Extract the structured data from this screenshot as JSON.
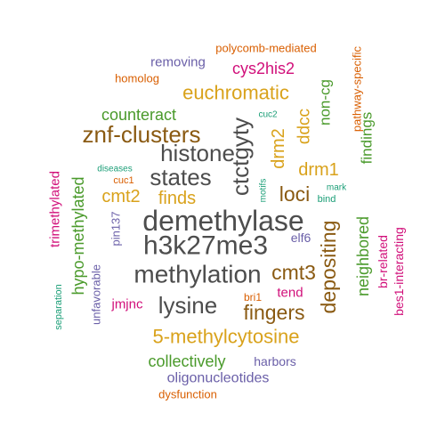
{
  "palette": {
    "gray": "#4d4d4d",
    "brown": "#8a5a12",
    "orange": "#d9a21b",
    "green": "#4a9a2b",
    "magenta": "#d10f7a",
    "teal": "#1b9e77",
    "purple": "#6a5fa8",
    "rust": "#d95f02"
  },
  "words": [
    {
      "text": "demethylase",
      "color": "gray"
    },
    {
      "text": "h3k27me3",
      "color": "gray"
    },
    {
      "text": "methylation",
      "color": "gray"
    },
    {
      "text": "histone",
      "color": "gray"
    },
    {
      "text": "states",
      "color": "gray"
    },
    {
      "text": "lysine",
      "color": "gray"
    },
    {
      "text": "ctctgyty",
      "color": "gray"
    },
    {
      "text": "znf-clusters",
      "color": "brown"
    },
    {
      "text": "depositing",
      "color": "brown"
    },
    {
      "text": "fingers",
      "color": "brown"
    },
    {
      "text": "cmt3",
      "color": "brown"
    },
    {
      "text": "loci",
      "color": "brown"
    },
    {
      "text": "euchromatic",
      "color": "orange"
    },
    {
      "text": "5-methylcytosine",
      "color": "orange"
    },
    {
      "text": "drm1",
      "color": "orange"
    },
    {
      "text": "drm2",
      "color": "orange"
    },
    {
      "text": "cmt2",
      "color": "orange"
    },
    {
      "text": "finds",
      "color": "orange"
    },
    {
      "text": "ddcc",
      "color": "orange"
    },
    {
      "text": "counteract",
      "color": "green"
    },
    {
      "text": "hypo-methylated",
      "color": "green"
    },
    {
      "text": "neighbored",
      "color": "green"
    },
    {
      "text": "non-cg",
      "color": "green"
    },
    {
      "text": "findings",
      "color": "green"
    },
    {
      "text": "collectively",
      "color": "green"
    },
    {
      "text": "cys2his2",
      "color": "magenta"
    },
    {
      "text": "trimethylated",
      "color": "magenta"
    },
    {
      "text": "jmjnc",
      "color": "magenta"
    },
    {
      "text": "br-related",
      "color": "magenta"
    },
    {
      "text": "bes1-interacting",
      "color": "magenta"
    },
    {
      "text": "tend",
      "color": "magenta"
    },
    {
      "text": "removing",
      "color": "purple"
    },
    {
      "text": "unfavorable",
      "color": "purple"
    },
    {
      "text": "pin137",
      "color": "purple"
    },
    {
      "text": "elf6",
      "color": "purple"
    },
    {
      "text": "harbors",
      "color": "purple"
    },
    {
      "text": "oligonucleotides",
      "color": "purple"
    },
    {
      "text": "polycomb-mediated",
      "color": "rust"
    },
    {
      "text": "homolog",
      "color": "rust"
    },
    {
      "text": "pathway-specific",
      "color": "rust"
    },
    {
      "text": "dysfunction",
      "color": "rust"
    },
    {
      "text": "cuc1",
      "color": "rust"
    },
    {
      "text": "bri1",
      "color": "rust"
    },
    {
      "text": "cuc2",
      "color": "teal"
    },
    {
      "text": "diseases",
      "color": "teal"
    },
    {
      "text": "separation",
      "color": "teal"
    },
    {
      "text": "motifs",
      "color": "teal"
    },
    {
      "text": "mark",
      "color": "teal"
    },
    {
      "text": "bind",
      "color": "teal"
    }
  ]
}
